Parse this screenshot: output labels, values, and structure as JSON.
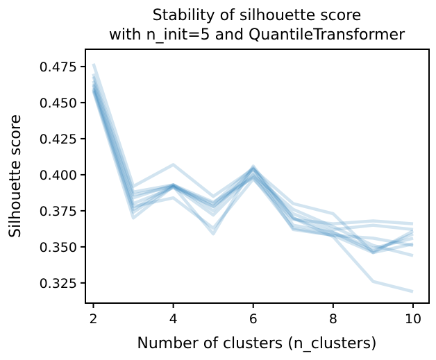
{
  "chart_data": {
    "type": "line",
    "title": [
      "Stability of silhouette score",
      "with n_init=5 and QuantileTransformer"
    ],
    "xlabel": "Number of clusters (n_clusters)",
    "ylabel": "Silhouette score",
    "xlim": [
      1.8,
      10.4
    ],
    "ylim": [
      0.311,
      0.487
    ],
    "xticks": [
      2,
      4,
      6,
      8,
      10
    ],
    "yticks": [
      0.325,
      0.35,
      0.375,
      0.4,
      0.425,
      0.45,
      0.475
    ],
    "ytick_labels": [
      "0.325",
      "0.350",
      "0.375",
      "0.400",
      "0.425",
      "0.450",
      "0.475"
    ],
    "grid": false,
    "line_color": "#1f77b4",
    "line_alpha": 0.2,
    "x": [
      2,
      3,
      4,
      5,
      6,
      7,
      8,
      9,
      10
    ],
    "series": [
      {
        "values": [
          0.477,
          0.392,
          0.407,
          0.385,
          0.404,
          0.38,
          0.373,
          0.346,
          0.361
        ]
      },
      {
        "values": [
          0.47,
          0.388,
          0.393,
          0.375,
          0.404,
          0.37,
          0.36,
          0.347,
          0.359
        ]
      },
      {
        "values": [
          0.468,
          0.386,
          0.392,
          0.38,
          0.405,
          0.365,
          0.36,
          0.349,
          0.356
        ]
      },
      {
        "values": [
          0.465,
          0.384,
          0.393,
          0.381,
          0.398,
          0.363,
          0.358,
          0.346,
          0.352
        ]
      },
      {
        "values": [
          0.463,
          0.38,
          0.391,
          0.378,
          0.402,
          0.362,
          0.358,
          0.356,
          0.351
        ]
      },
      {
        "values": [
          0.462,
          0.378,
          0.384,
          0.363,
          0.397,
          0.369,
          0.366,
          0.368,
          0.366
        ]
      },
      {
        "values": [
          0.46,
          0.376,
          0.393,
          0.378,
          0.399,
          0.373,
          0.362,
          0.365,
          0.362
        ]
      },
      {
        "values": [
          0.459,
          0.374,
          0.392,
          0.372,
          0.4,
          0.376,
          0.364,
          0.351,
          0.344
        ]
      },
      {
        "values": [
          0.458,
          0.37,
          0.392,
          0.359,
          0.406,
          0.37,
          0.357,
          0.326,
          0.319
        ]
      }
    ]
  }
}
